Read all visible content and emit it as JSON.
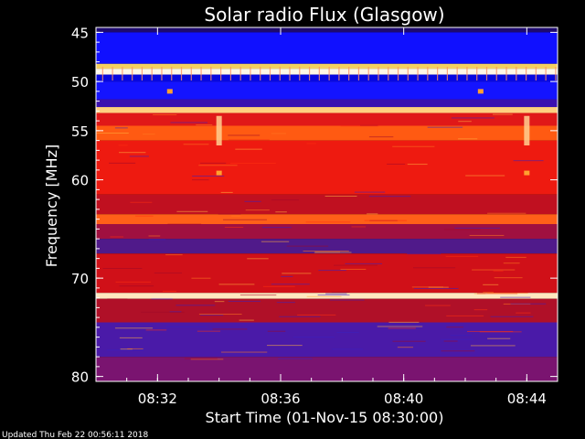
{
  "chart_data": {
    "type": "heatmap",
    "title": "Solar radio Flux (Glasgow)",
    "xlabel": "Start Time (01-Nov-15 08:30:00)",
    "ylabel": "Frequency [MHz]",
    "x_range_minutes": [
      0,
      15
    ],
    "x_ticks": [
      {
        "value": 2,
        "label": "08:32"
      },
      {
        "value": 6,
        "label": "08:36"
      },
      {
        "value": 10,
        "label": "08:40"
      },
      {
        "value": 14,
        "label": "08:44"
      }
    ],
    "y_range": [
      44.5,
      80.5
    ],
    "y_ticks": [
      {
        "value": 45,
        "label": "45"
      },
      {
        "value": 50,
        "label": "50"
      },
      {
        "value": 55,
        "label": "55"
      },
      {
        "value": 60,
        "label": "60"
      },
      {
        "value": 70,
        "label": "70"
      },
      {
        "value": 80,
        "label": "80"
      }
    ],
    "grid": false,
    "bands": [
      {
        "from": 44.5,
        "to": 45.0,
        "color": "#1e0a6e"
      },
      {
        "from": 45.0,
        "to": 48.2,
        "color": "#1010ff"
      },
      {
        "from": 48.2,
        "to": 48.7,
        "color": "#f4d060"
      },
      {
        "from": 48.7,
        "to": 49.3,
        "color": "#fff8e6"
      },
      {
        "from": 49.3,
        "to": 50.0,
        "color": "#0808e0"
      },
      {
        "from": 50.0,
        "to": 51.8,
        "color": "#1414ff"
      },
      {
        "from": 51.8,
        "to": 52.6,
        "color": "#3a10b0"
      },
      {
        "from": 52.6,
        "to": 53.2,
        "color": "#ffd080"
      },
      {
        "from": 53.2,
        "to": 54.5,
        "color": "#e01818"
      },
      {
        "from": 54.5,
        "to": 56.0,
        "color": "#ff5a12"
      },
      {
        "from": 56.0,
        "to": 61.5,
        "color": "#ee1a10"
      },
      {
        "from": 61.5,
        "to": 63.5,
        "color": "#c01020"
      },
      {
        "from": 63.5,
        "to": 64.5,
        "color": "#ff6018"
      },
      {
        "from": 64.5,
        "to": 66.0,
        "color": "#a01040"
      },
      {
        "from": 66.0,
        "to": 67.5,
        "color": "#501a8a"
      },
      {
        "from": 67.5,
        "to": 71.5,
        "color": "#d01018"
      },
      {
        "from": 71.5,
        "to": 72.1,
        "color": "#ffe8c0"
      },
      {
        "from": 72.1,
        "to": 74.5,
        "color": "#b01028"
      },
      {
        "from": 74.5,
        "to": 78.0,
        "color": "#4a1aa8"
      },
      {
        "from": 78.0,
        "to": 80.5,
        "color": "#7a1470"
      }
    ],
    "events": [
      {
        "time": 4.0,
        "from": 53.5,
        "to": 56.5
      },
      {
        "time": 14.0,
        "from": 53.5,
        "to": 56.5
      }
    ],
    "spots": [
      {
        "time": 2.4,
        "freq": 51.0
      },
      {
        "time": 12.5,
        "freq": 51.0
      },
      {
        "time": 4.0,
        "freq": 59.3
      },
      {
        "time": 14.0,
        "freq": 59.3
      }
    ],
    "colors": {
      "low": "#1010ff",
      "mid": "#e01818",
      "high": "#ffe8c0"
    }
  },
  "footer": "Updated Thu Feb 22 00:56:11 2018"
}
